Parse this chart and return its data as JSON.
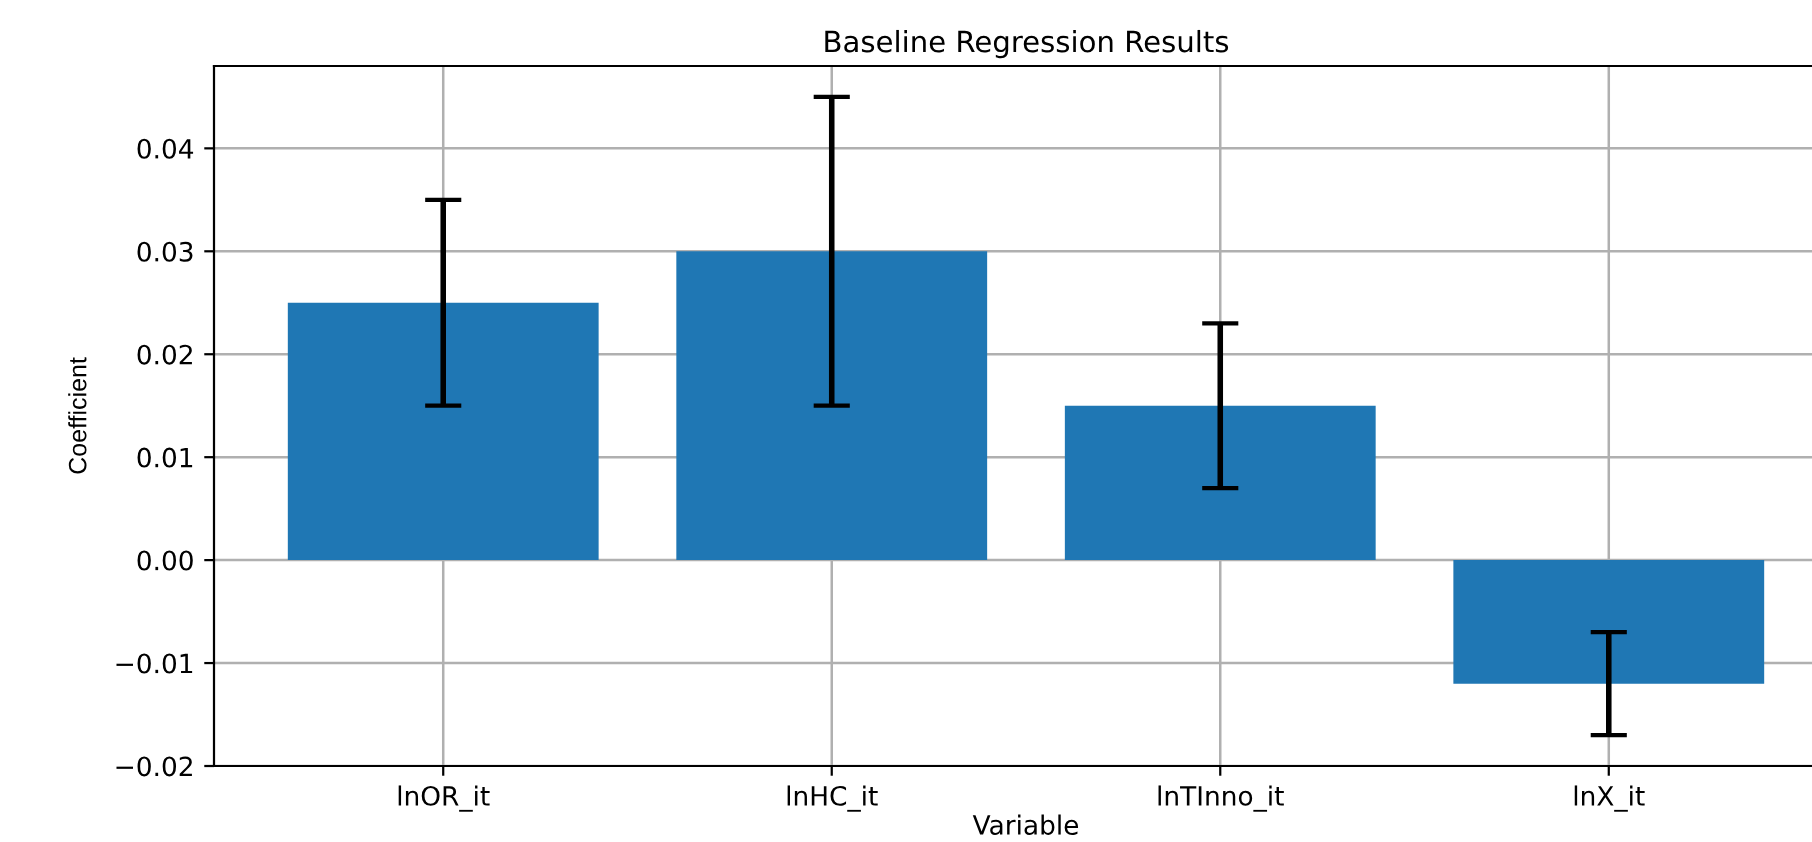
{
  "chart_data": {
    "type": "bar",
    "title": "Baseline Regression Results",
    "xlabel": "Variable",
    "ylabel": "Coefficient",
    "categories": [
      "lnOR_it",
      "lnHC_it",
      "lnTInno_it",
      "lnX_it"
    ],
    "values": [
      0.025,
      0.03,
      0.015,
      -0.012
    ],
    "errors": [
      0.01,
      0.015,
      0.008,
      0.005
    ],
    "color": "#1f77b4",
    "ylim": [
      -0.02,
      0.048
    ],
    "yticks": [
      {
        "value": -0.02,
        "label": "−0.02"
      },
      {
        "value": -0.01,
        "label": "−0.01"
      },
      {
        "value": 0,
        "label": "0.00"
      },
      {
        "value": 0.01,
        "label": "0.01"
      },
      {
        "value": 0.02,
        "label": "0.02"
      },
      {
        "value": 0.03,
        "label": "0.03"
      },
      {
        "value": 0.04,
        "label": "0.04"
      }
    ],
    "grid": true
  }
}
